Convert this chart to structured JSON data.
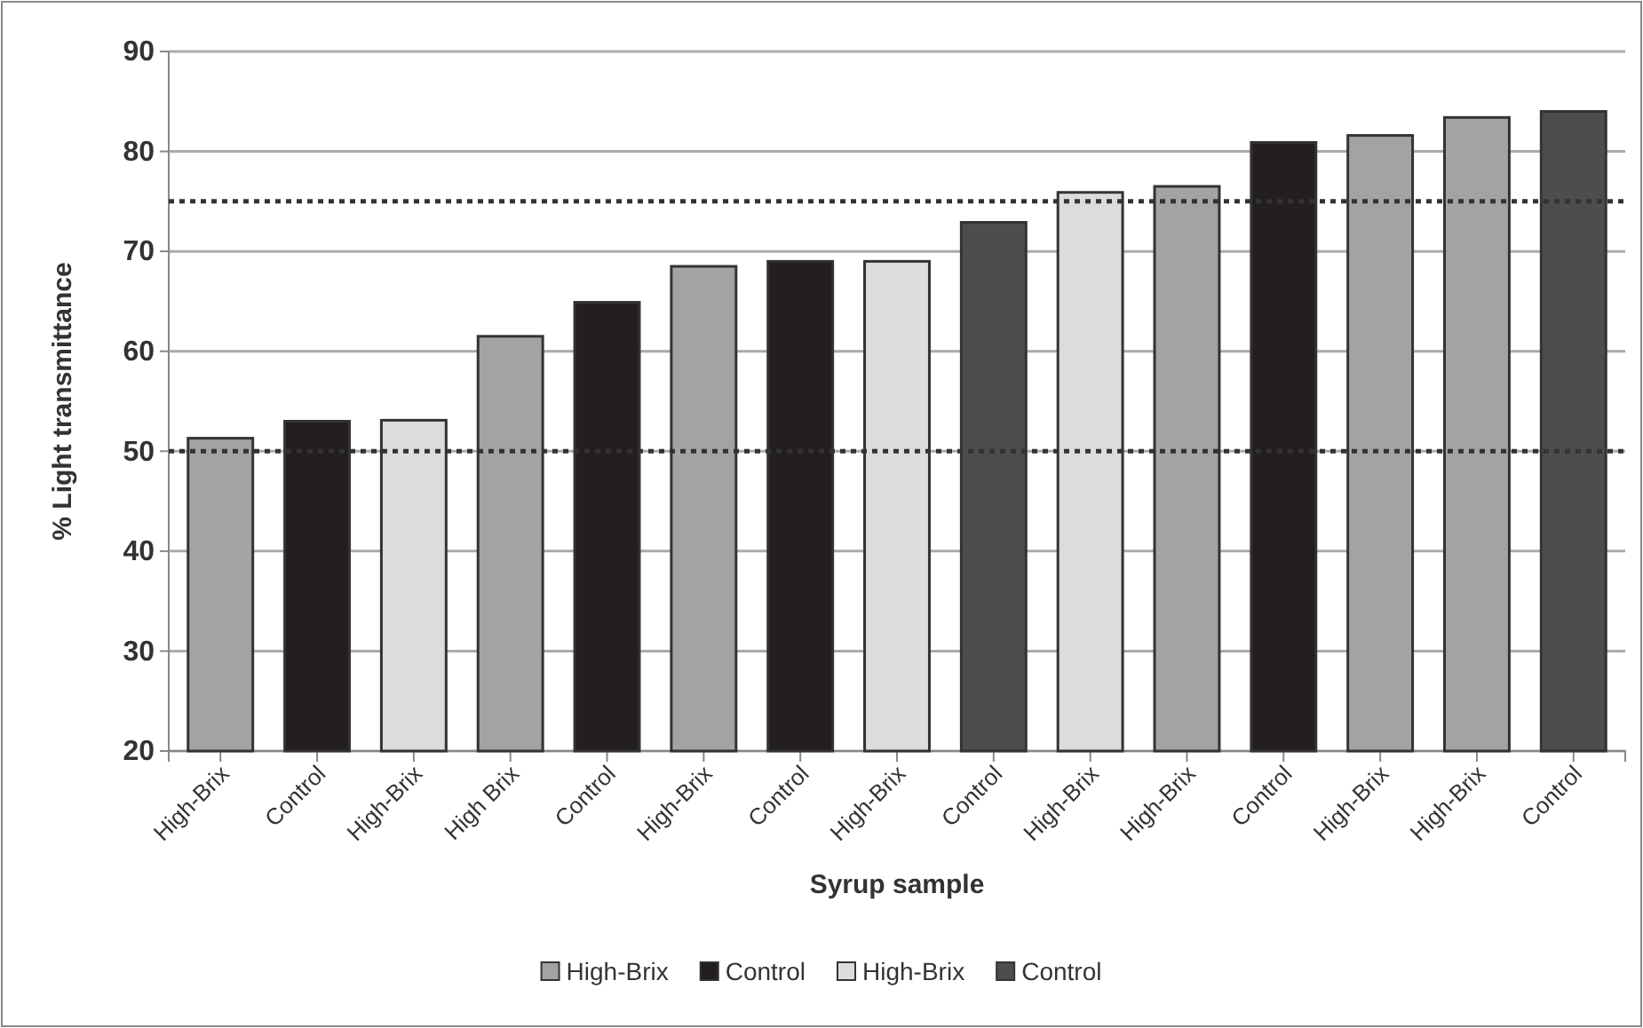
{
  "chart_data": {
    "type": "bar",
    "xlabel": "Syrup sample",
    "ylabel": "% Light transmittance",
    "categories": [
      "High-Brix",
      "Control",
      "High-Brix",
      "High Brix",
      "Control",
      "High-Brix",
      "Control",
      "High-Brix",
      "Control",
      "High-Brix",
      "High-Brix",
      "Control",
      "High-Brix",
      "High-Brix",
      "Control"
    ],
    "series": [
      {
        "name": "High-Brix",
        "color": "#a3a3a3",
        "values": [
          51.3,
          null,
          null,
          61.5,
          null,
          68.5,
          null,
          null,
          null,
          null,
          76.5,
          null,
          81.6,
          83.4,
          null
        ]
      },
      {
        "name": "Control",
        "color": "#231f20",
        "values": [
          null,
          53.0,
          null,
          null,
          64.9,
          null,
          69.0,
          null,
          null,
          null,
          null,
          80.9,
          null,
          null,
          null
        ]
      },
      {
        "name": "High-Brix",
        "color": "#dcdcdc",
        "values": [
          null,
          null,
          53.1,
          null,
          null,
          null,
          null,
          69.0,
          null,
          75.9,
          null,
          null,
          null,
          null,
          null
        ]
      },
      {
        "name": "Control",
        "color": "#4d4d4d",
        "values": [
          null,
          null,
          null,
          null,
          null,
          null,
          null,
          null,
          72.9,
          null,
          null,
          null,
          null,
          null,
          84.0
        ]
      }
    ],
    "ylim": [
      20,
      90
    ],
    "yticks": [
      20,
      30,
      40,
      50,
      60,
      70,
      80,
      90
    ],
    "grid": "y",
    "legend": "bottom",
    "ref_lines": [
      {
        "axis": "y",
        "value": 50,
        "line_style": "dotted",
        "color": "#333333"
      },
      {
        "axis": "y",
        "value": 75,
        "line_style": "dotted",
        "color": "#333333"
      }
    ]
  }
}
